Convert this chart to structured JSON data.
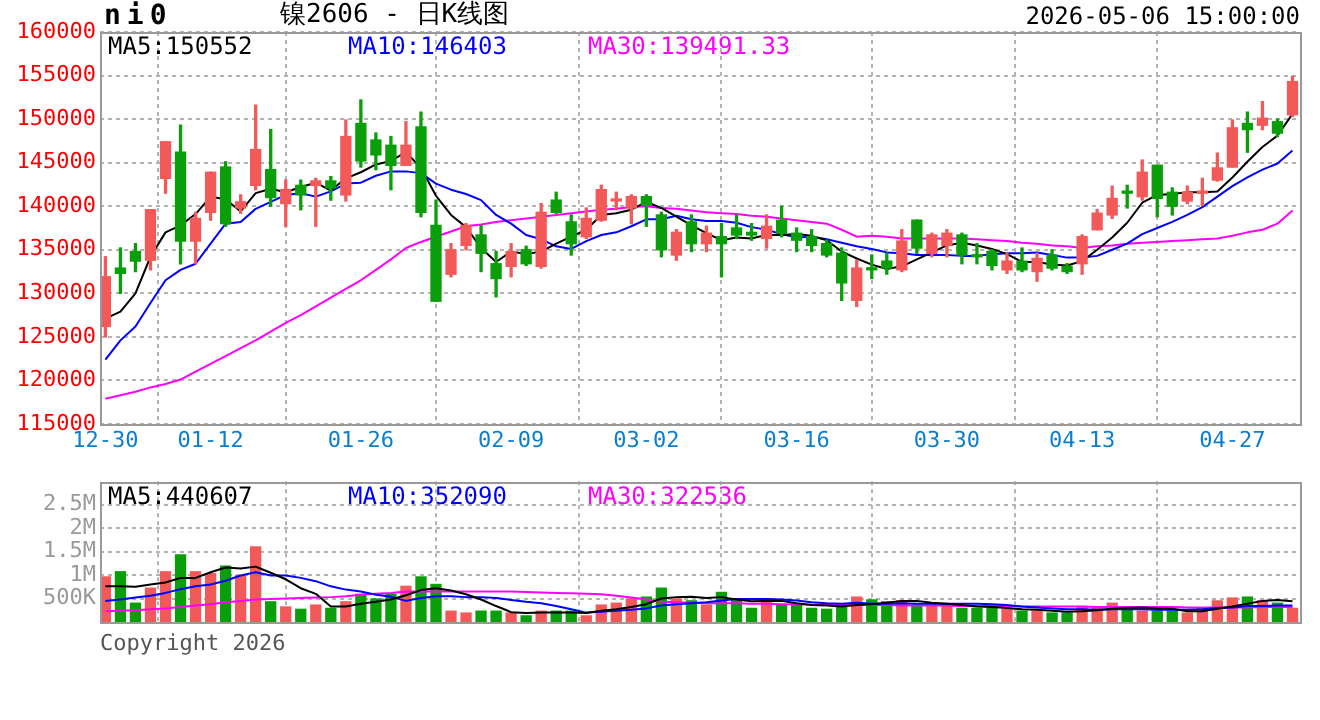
{
  "chart_data": [
    {
      "type": "candlestick",
      "title": "ni0",
      "subtitle": "镍2606 - 日K线图",
      "annotations": [
        "2026-05-06 15:00:00"
      ],
      "categories": [
        "12-30",
        null,
        null,
        null,
        null,
        null,
        null,
        "01-12",
        null,
        null,
        null,
        null,
        null,
        null,
        null,
        null,
        null,
        "01-26",
        null,
        null,
        null,
        null,
        null,
        null,
        null,
        null,
        null,
        "02-09",
        null,
        null,
        null,
        null,
        null,
        null,
        null,
        null,
        "03-02",
        null,
        null,
        null,
        null,
        null,
        null,
        null,
        null,
        null,
        "03-16",
        null,
        null,
        null,
        null,
        null,
        null,
        null,
        null,
        null,
        "03-30",
        null,
        null,
        null,
        null,
        null,
        null,
        null,
        null,
        "04-13",
        null,
        null,
        null,
        null,
        null,
        null,
        null,
        null,
        null,
        "04-27",
        null,
        null,
        null,
        null
      ],
      "ohlc": [
        [
          126200,
          134200,
          125000,
          131900
        ],
        [
          132900,
          135200,
          130000,
          132300
        ],
        [
          134800,
          135700,
          132500,
          133700
        ],
        [
          133800,
          139600,
          132700,
          139600
        ],
        [
          143200,
          147400,
          141500,
          147400
        ],
        [
          146200,
          149300,
          133400,
          136000
        ],
        [
          136000,
          139300,
          133400,
          138600
        ],
        [
          139300,
          143900,
          138400,
          143900
        ],
        [
          144500,
          145100,
          137700,
          138000
        ],
        [
          139800,
          141300,
          139200,
          140500
        ],
        [
          142400,
          151600,
          141900,
          146500
        ],
        [
          144200,
          148800,
          140000,
          141000
        ],
        [
          140300,
          143000,
          137700,
          141900
        ],
        [
          142400,
          143000,
          139600,
          141300
        ],
        [
          142400,
          143200,
          137700,
          142900
        ],
        [
          142900,
          143400,
          140700,
          142100
        ],
        [
          141300,
          149900,
          140600,
          148000
        ],
        [
          149500,
          152200,
          144500,
          145200
        ],
        [
          147600,
          148400,
          144200,
          145900
        ],
        [
          147000,
          148000,
          141900,
          144700
        ],
        [
          144700,
          149700,
          144700,
          147000
        ],
        [
          149100,
          150800,
          138800,
          139300
        ],
        [
          137800,
          140700,
          129100,
          129100
        ],
        [
          132200,
          135700,
          131900,
          135000
        ],
        [
          135500,
          138000,
          135000,
          137800
        ],
        [
          136700,
          137800,
          132500,
          134600
        ],
        [
          133400,
          134800,
          129600,
          131700
        ],
        [
          133100,
          135700,
          131900,
          134800
        ],
        [
          135000,
          135400,
          133200,
          133400
        ],
        [
          133100,
          140300,
          132900,
          139300
        ],
        [
          140700,
          141600,
          139200,
          139300
        ],
        [
          138200,
          139000,
          134400,
          135700
        ],
        [
          136500,
          139800,
          136300,
          138600
        ],
        [
          138400,
          142400,
          138300,
          141900
        ],
        [
          140600,
          141600,
          139600,
          140700
        ],
        [
          139800,
          141300,
          138000,
          141100
        ],
        [
          141100,
          141300,
          137700,
          140100
        ],
        [
          139000,
          139300,
          134200,
          135000
        ],
        [
          134400,
          137300,
          133800,
          137000
        ],
        [
          138200,
          139000,
          134800,
          135700
        ],
        [
          135700,
          137700,
          134800,
          136900
        ],
        [
          136500,
          138000,
          131900,
          135700
        ],
        [
          137500,
          139000,
          136300,
          136700
        ],
        [
          137000,
          138000,
          136100,
          136700
        ],
        [
          136300,
          139000,
          135200,
          137700
        ],
        [
          138400,
          140000,
          136500,
          136900
        ],
        [
          136900,
          137500,
          134800,
          136100
        ],
        [
          136500,
          137300,
          134800,
          135500
        ],
        [
          135700,
          136100,
          134200,
          134400
        ],
        [
          134600,
          135200,
          129200,
          131200
        ],
        [
          129200,
          133800,
          128500,
          132900
        ],
        [
          132900,
          134400,
          131700,
          132700
        ],
        [
          133700,
          134600,
          132200,
          132900
        ],
        [
          132700,
          137300,
          132500,
          136000
        ],
        [
          138400,
          138400,
          134600,
          135200
        ],
        [
          134600,
          136900,
          134200,
          136700
        ],
        [
          135500,
          137300,
          134200,
          136900
        ],
        [
          136700,
          136900,
          133400,
          134400
        ],
        [
          134400,
          135700,
          133400,
          134200
        ],
        [
          134800,
          135000,
          132700,
          133200
        ],
        [
          132700,
          134600,
          132300,
          133700
        ],
        [
          133700,
          135200,
          132500,
          132700
        ],
        [
          132500,
          134600,
          131400,
          134000
        ],
        [
          134400,
          135000,
          132700,
          132900
        ],
        [
          133100,
          133400,
          132300,
          132500
        ],
        [
          133400,
          136700,
          132200,
          136500
        ],
        [
          137300,
          139600,
          137300,
          139200
        ],
        [
          139000,
          142300,
          138600,
          140900
        ],
        [
          141600,
          142400,
          139800,
          141500
        ],
        [
          141100,
          145300,
          140700,
          143900
        ],
        [
          144700,
          144700,
          138800,
          140900
        ],
        [
          141600,
          142100,
          139000,
          140000
        ],
        [
          140600,
          142300,
          140300,
          141600
        ],
        [
          141500,
          143200,
          140100,
          141600
        ],
        [
          143000,
          146100,
          142900,
          144400
        ],
        [
          144500,
          149900,
          144500,
          149000
        ],
        [
          149500,
          150800,
          146200,
          148800
        ],
        [
          149300,
          152000,
          148800,
          150100
        ],
        [
          149700,
          150000,
          148000,
          148400
        ],
        [
          150500,
          154900,
          150300,
          154300
        ]
      ],
      "colors": [
        "#f25a5a",
        "#0a9e0a",
        "#0a9e0a",
        "#f25a5a",
        "#f25a5a",
        "#0a9e0a",
        "#f25a5a",
        "#f25a5a",
        "#0a9e0a",
        "#f25a5a",
        "#f25a5a",
        "#0a9e0a",
        "#f25a5a",
        "#0a9e0a",
        "#f25a5a",
        "#0a9e0a",
        "#f25a5a",
        "#0a9e0a",
        "#0a9e0a",
        "#0a9e0a",
        "#f25a5a",
        "#0a9e0a",
        "#0a9e0a",
        "#f25a5a",
        "#f25a5a",
        "#0a9e0a",
        "#0a9e0a",
        "#f25a5a",
        "#0a9e0a",
        "#f25a5a",
        "#0a9e0a",
        "#0a9e0a",
        "#f25a5a",
        "#f25a5a",
        "#f25a5a",
        "#f25a5a",
        "#0a9e0a",
        "#0a9e0a",
        "#f25a5a",
        "#0a9e0a",
        "#f25a5a",
        "#0a9e0a",
        "#0a9e0a",
        "#0a9e0a",
        "#f25a5a",
        "#0a9e0a",
        "#0a9e0a",
        "#0a9e0a",
        "#0a9e0a",
        "#0a9e0a",
        "#f25a5a",
        "#0a9e0a",
        "#0a9e0a",
        "#f25a5a",
        "#0a9e0a",
        "#f25a5a",
        "#f25a5a",
        "#0a9e0a",
        "#0a9e0a",
        "#0a9e0a",
        "#f25a5a",
        "#0a9e0a",
        "#f25a5a",
        "#0a9e0a",
        "#0a9e0a",
        "#f25a5a",
        "#f25a5a",
        "#f25a5a",
        "#0a9e0a",
        "#f25a5a",
        "#0a9e0a",
        "#0a9e0a",
        "#f25a5a",
        "#f25a5a",
        "#f25a5a",
        "#f25a5a",
        "#0a9e0a",
        "#f25a5a",
        "#0a9e0a",
        "#f25a5a"
      ],
      "series": [
        {
          "type": "line",
          "name": "MA5:150552",
          "color": "#000000",
          "values": [
            127100,
            127900,
            130000,
            134200,
            137000,
            137800,
            139100,
            141100,
            140800,
            139400,
            141500,
            142000,
            141600,
            142200,
            142700,
            141800,
            143200,
            143900,
            144800,
            145200,
            146200,
            144400,
            141200,
            139000,
            137600,
            135200,
            133600,
            134800,
            134500,
            134800,
            135700,
            136500,
            137300,
            139000,
            139200,
            139600,
            140500,
            139800,
            138800,
            137800,
            136900,
            136100,
            136400,
            136300,
            136700,
            136700,
            136800,
            136600,
            136100,
            134800,
            134000,
            133300,
            132800,
            133100,
            133900,
            134700,
            135500,
            135800,
            135500,
            135100,
            134500,
            133600,
            133600,
            133300,
            133200,
            133700,
            135000,
            136400,
            138100,
            140400,
            141300,
            141400,
            141600,
            141600,
            141700,
            143300,
            145100,
            146800,
            148100,
            150600
          ]
        },
        {
          "type": "line",
          "name": "MA10:146403",
          "color": "#0000ff",
          "values": [
            122400,
            124600,
            126200,
            128900,
            131500,
            132700,
            133400,
            135700,
            138000,
            138200,
            139700,
            140500,
            141300,
            141500,
            141100,
            141700,
            142600,
            142700,
            143500,
            144000,
            144000,
            143800,
            142600,
            141900,
            141400,
            140700,
            139000,
            138000,
            136700,
            136200,
            135400,
            135100,
            136000,
            136700,
            137000,
            137700,
            138500,
            138500,
            138900,
            138500,
            138300,
            138300,
            138100,
            137600,
            137300,
            136800,
            136400,
            136500,
            136200,
            135800,
            135400,
            135100,
            134700,
            134600,
            134400,
            134400,
            134400,
            134300,
            134300,
            134500,
            134600,
            134600,
            134700,
            134400,
            134100,
            134100,
            134300,
            135000,
            135700,
            136800,
            137500,
            138200,
            139000,
            139900,
            141100,
            142300,
            143300,
            144200,
            144900,
            146400
          ]
        },
        {
          "type": "line",
          "name": "MA30:139491.33",
          "color": "#ff00ff",
          "values": [
            117900,
            118300,
            118700,
            119200,
            119600,
            120100,
            121000,
            121900,
            122800,
            123700,
            124600,
            125600,
            126600,
            127500,
            128500,
            129500,
            130500,
            131500,
            132700,
            133900,
            135200,
            135900,
            136500,
            137100,
            137700,
            137900,
            138200,
            138400,
            138600,
            138800,
            139000,
            139200,
            139400,
            139600,
            139700,
            139900,
            140000,
            139800,
            139700,
            139500,
            139300,
            139200,
            139100,
            138900,
            138800,
            138600,
            138400,
            138200,
            138000,
            137300,
            136500,
            136600,
            136500,
            136300,
            136300,
            136300,
            136300,
            136300,
            136200,
            136100,
            136000,
            135800,
            135700,
            135500,
            135400,
            135200,
            135400,
            135500,
            135700,
            135800,
            135900,
            136000,
            136100,
            136200,
            136300,
            136600,
            137000,
            137300,
            138000,
            139500
          ]
        }
      ],
      "ylim": [
        115000,
        160000
      ],
      "yticks": [
        115000,
        120000,
        125000,
        130000,
        135000,
        140000,
        145000,
        150000,
        155000,
        160000
      ],
      "grid": true,
      "legend": "top left",
      "marker": "none"
    },
    {
      "type": "bar",
      "annotations": [
        "Copyright 2026"
      ],
      "categories": [
        null,
        null,
        null,
        null,
        null,
        null,
        null,
        null,
        null,
        null,
        null,
        null,
        null,
        null,
        null,
        null,
        null,
        null,
        null,
        null,
        null,
        null,
        null,
        null,
        null,
        null,
        null,
        null,
        null,
        null,
        null,
        null,
        null,
        null,
        null,
        null,
        null,
        null,
        null,
        null,
        null,
        null,
        null,
        null,
        null,
        null,
        null,
        null,
        null,
        null,
        null,
        null,
        null,
        null,
        null,
        null,
        null,
        null,
        null,
        null,
        null,
        null,
        null,
        null,
        null,
        null,
        null,
        null,
        null,
        null,
        null,
        null,
        null,
        null,
        null,
        null,
        null,
        null,
        null,
        null
      ],
      "series": [
        {
          "type": "bar",
          "colors": [
            "#f25a5a",
            "#0a9e0a",
            "#0a9e0a",
            "#f25a5a",
            "#f25a5a",
            "#0a9e0a",
            "#f25a5a",
            "#f25a5a",
            "#0a9e0a",
            "#f25a5a",
            "#f25a5a",
            "#0a9e0a",
            "#f25a5a",
            "#0a9e0a",
            "#f25a5a",
            "#0a9e0a",
            "#f25a5a",
            "#0a9e0a",
            "#0a9e0a",
            "#0a9e0a",
            "#f25a5a",
            "#0a9e0a",
            "#0a9e0a",
            "#f25a5a",
            "#f25a5a",
            "#0a9e0a",
            "#0a9e0a",
            "#f25a5a",
            "#0a9e0a",
            "#f25a5a",
            "#0a9e0a",
            "#0a9e0a",
            "#f25a5a",
            "#f25a5a",
            "#f25a5a",
            "#f25a5a",
            "#0a9e0a",
            "#0a9e0a",
            "#f25a5a",
            "#0a9e0a",
            "#f25a5a",
            "#0a9e0a",
            "#0a9e0a",
            "#0a9e0a",
            "#f25a5a",
            "#0a9e0a",
            "#0a9e0a",
            "#0a9e0a",
            "#0a9e0a",
            "#0a9e0a",
            "#f25a5a",
            "#0a9e0a",
            "#0a9e0a",
            "#f25a5a",
            "#0a9e0a",
            "#f25a5a",
            "#f25a5a",
            "#0a9e0a",
            "#0a9e0a",
            "#0a9e0a",
            "#f25a5a",
            "#0a9e0a",
            "#f25a5a",
            "#0a9e0a",
            "#0a9e0a",
            "#f25a5a",
            "#f25a5a",
            "#f25a5a",
            "#0a9e0a",
            "#f25a5a",
            "#0a9e0a",
            "#0a9e0a",
            "#f25a5a",
            "#f25a5a",
            "#f25a5a",
            "#f25a5a",
            "#0a9e0a",
            "#f25a5a",
            "#0a9e0a",
            "#f25a5a"
          ],
          "values": [
            960000,
            1070000,
            400000,
            720000,
            1070000,
            1430000,
            1070000,
            1030000,
            1190000,
            990000,
            1600000,
            430000,
            320000,
            270000,
            360000,
            290000,
            430000,
            590000,
            490000,
            590000,
            760000,
            960000,
            800000,
            230000,
            190000,
            230000,
            230000,
            190000,
            130000,
            230000,
            230000,
            230000,
            130000,
            360000,
            400000,
            490000,
            530000,
            720000,
            490000,
            450000,
            360000,
            630000,
            490000,
            290000,
            490000,
            360000,
            360000,
            290000,
            270000,
            360000,
            530000,
            470000,
            430000,
            450000,
            360000,
            360000,
            360000,
            290000,
            290000,
            290000,
            270000,
            230000,
            230000,
            190000,
            190000,
            320000,
            320000,
            400000,
            290000,
            230000,
            230000,
            230000,
            190000,
            290000,
            450000,
            510000,
            530000,
            450000,
            400000,
            290000
          ]
        },
        {
          "type": "line",
          "name": "MA5:440607",
          "color": "#000000",
          "values": [
            760000,
            760000,
            750000,
            800000,
            840000,
            940000,
            940000,
            1060000,
            1160000,
            1140000,
            1180000,
            1050000,
            910000,
            720000,
            600000,
            330000,
            330000,
            390000,
            430000,
            480000,
            570000,
            680000,
            720000,
            670000,
            590000,
            480000,
            340000,
            210000,
            190000,
            200000,
            200000,
            200000,
            190000,
            240000,
            270000,
            320000,
            380000,
            500000,
            530000,
            540000,
            510000,
            530000,
            480000,
            440000,
            450000,
            450000,
            400000,
            360000,
            350000,
            330000,
            360000,
            380000,
            410000,
            450000,
            450000,
            410000,
            390000,
            360000,
            330000,
            320000,
            300000,
            270000,
            260000,
            240000,
            220000,
            230000,
            250000,
            280000,
            300000,
            310000,
            290000,
            280000,
            230000,
            230000,
            280000,
            330000,
            390000,
            450000,
            470000,
            440000
          ]
        },
        {
          "type": "line",
          "name": "MA10:352090",
          "color": "#0000ff",
          "values": [
            450000,
            480000,
            520000,
            560000,
            620000,
            700000,
            760000,
            800000,
            880000,
            990000,
            1060000,
            990000,
            990000,
            940000,
            870000,
            760000,
            690000,
            650000,
            580000,
            540000,
            450000,
            510000,
            550000,
            550000,
            530000,
            530000,
            510000,
            470000,
            430000,
            400000,
            340000,
            270000,
            200000,
            220000,
            240000,
            260000,
            290000,
            350000,
            380000,
            400000,
            420000,
            460000,
            490000,
            490000,
            490000,
            480000,
            460000,
            420000,
            400000,
            390000,
            410000,
            390000,
            390000,
            400000,
            390000,
            390000,
            390000,
            390000,
            390000,
            380000,
            360000,
            330000,
            310000,
            290000,
            270000,
            270000,
            260000,
            270000,
            270000,
            270000,
            260000,
            260000,
            260000,
            270000,
            300000,
            310000,
            340000,
            340000,
            350000,
            350000
          ]
        },
        {
          "type": "line",
          "name": "MA30:322536",
          "color": "#ff00ff",
          "values": [
            230000,
            240000,
            250000,
            270000,
            290000,
            320000,
            350000,
            380000,
            420000,
            450000,
            480000,
            490000,
            500000,
            510000,
            520000,
            530000,
            550000,
            580000,
            600000,
            620000,
            650000,
            650000,
            650000,
            650000,
            650000,
            650000,
            650000,
            650000,
            640000,
            630000,
            620000,
            610000,
            600000,
            590000,
            560000,
            520000,
            480000,
            430000,
            420000,
            410000,
            400000,
            400000,
            400000,
            390000,
            390000,
            380000,
            380000,
            370000,
            370000,
            360000,
            360000,
            360000,
            360000,
            350000,
            350000,
            350000,
            350000,
            340000,
            340000,
            340000,
            340000,
            330000,
            330000,
            330000,
            330000,
            330000,
            320000,
            320000,
            320000,
            320000,
            320000,
            320000,
            310000,
            310000,
            310000,
            310000,
            310000,
            320000,
            320000,
            320000
          ]
        }
      ],
      "ylim": [
        0,
        3000000
      ],
      "yticks": [
        {
          "value": 500000,
          "label": "500K"
        },
        {
          "value": 1000000,
          "label": "1M"
        },
        {
          "value": 1500000,
          "label": "1.5M"
        },
        {
          "value": 2000000,
          "label": "2M"
        },
        {
          "value": 2500000,
          "label": "2.5M"
        }
      ],
      "grid": true,
      "legend": "top left",
      "marker": "none",
      "tick_labels": "y"
    }
  ]
}
